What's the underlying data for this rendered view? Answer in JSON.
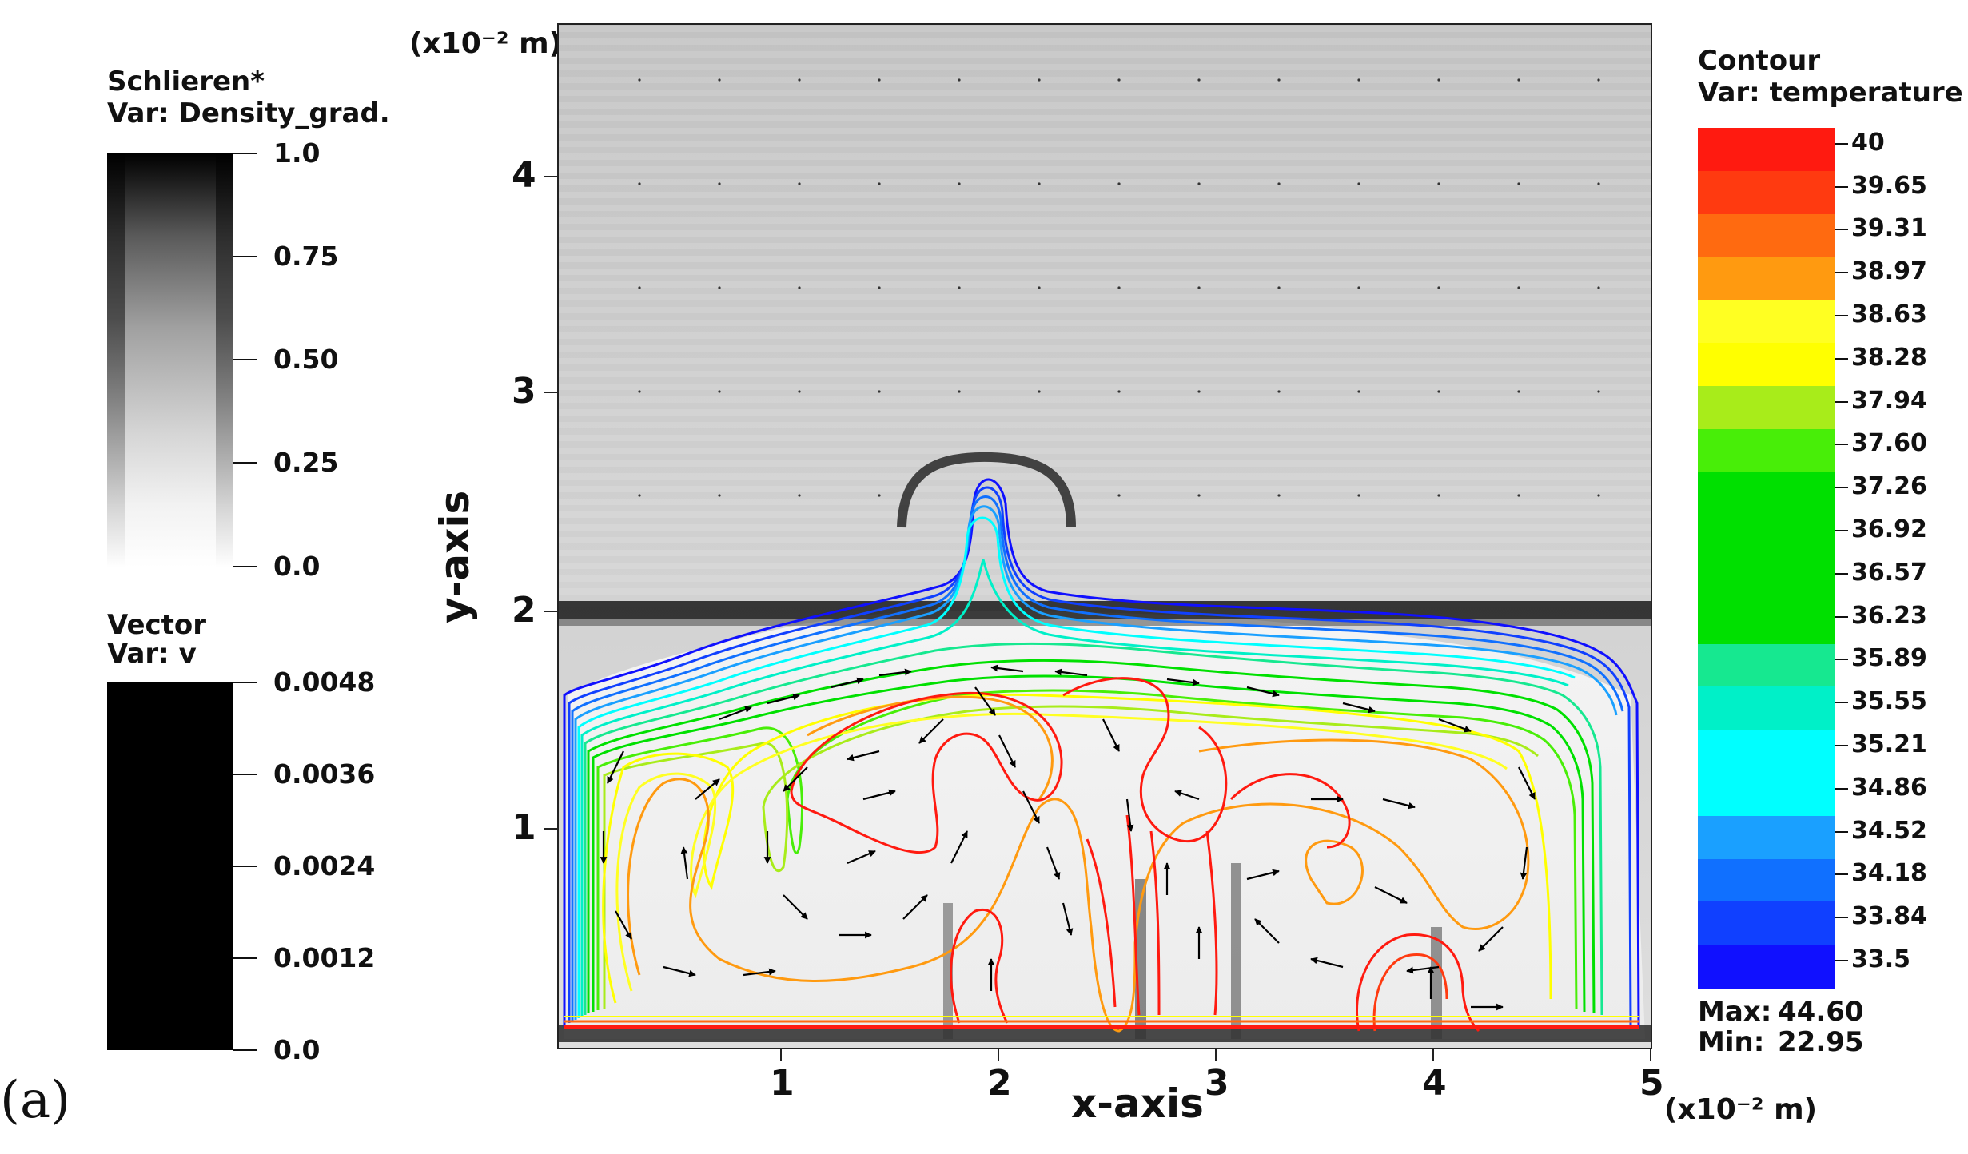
{
  "panel_label": "(a)",
  "schlieren_legend": {
    "title1": "Schlieren*",
    "title2": "Var: Density_grad.",
    "ticks": [
      "1.0",
      "0.75",
      "0.50",
      "0.25",
      "0.0"
    ]
  },
  "vector_legend": {
    "title1": "Vector",
    "title2": "Var: v",
    "ticks": [
      "0.0048",
      "0.0036",
      "0.0024",
      "0.0012",
      "0.0"
    ]
  },
  "contour_legend": {
    "title1": "Contour",
    "title2": "Var: temperature",
    "levels": [
      "40",
      "39.65",
      "39.31",
      "38.97",
      "38.63",
      "38.28",
      "37.94",
      "37.60",
      "37.26",
      "36.92",
      "36.57",
      "36.23",
      "35.89",
      "35.55",
      "35.21",
      "34.86",
      "34.52",
      "34.18",
      "33.84",
      "33.5"
    ],
    "colors": [
      "#ff1a10",
      "#ff3a10",
      "#ff6a10",
      "#ff9a10",
      "#ffff22",
      "#ffff00",
      "#a8ec1a",
      "#48ee08",
      "#00e000",
      "#00e000",
      "#00e000",
      "#00e000",
      "#16e890",
      "#00f0c8",
      "#00ffff",
      "#00ffff",
      "#1aa0ff",
      "#1070ff",
      "#1040ff",
      "#1010ff"
    ],
    "max_label": "Max:",
    "max_value": "44.60",
    "min_label": "Min:",
    "min_value": "22.95"
  },
  "chart_data": {
    "type": "contour",
    "xlabel": "x-axis",
    "ylabel": "y-axis",
    "x_unit": "(x10⁻² m)",
    "y_unit": "(x10⁻² m)",
    "xlim": [
      0,
      5
    ],
    "ylim": [
      0,
      4.7
    ],
    "x_ticks": [
      "1",
      "2",
      "3",
      "4",
      "5"
    ],
    "y_ticks": [
      "1",
      "2",
      "3",
      "4"
    ],
    "grid": false,
    "variable": "temperature",
    "max": 44.6,
    "min": 22.95,
    "interface_height": 2.0,
    "plume_peak": [
      1.95,
      2.55
    ]
  }
}
